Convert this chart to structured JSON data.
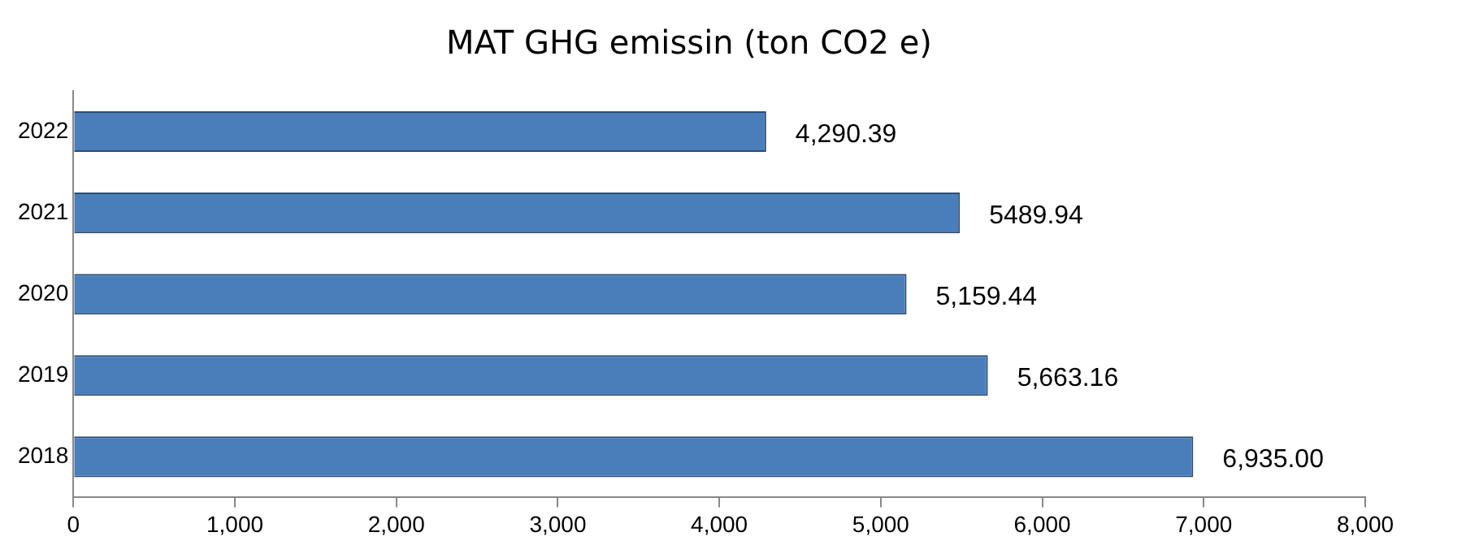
{
  "chart_data": {
    "type": "bar",
    "orientation": "horizontal",
    "title": "MAT GHG emissin (ton CO2 e)",
    "categories": [
      "2022",
      "2021",
      "2020",
      "2019",
      "2018"
    ],
    "values": [
      4290.39,
      5489.94,
      5159.44,
      5663.16,
      6935.0
    ],
    "value_labels": [
      "4,290.39",
      "5489.94",
      "5,159.44",
      "5,663.16",
      "6,935.00"
    ],
    "color": "#4a7ebb",
    "xlim": [
      0,
      8000
    ],
    "xticks": [
      0,
      {
        "value": 1000,
        "label": "1,000"
      },
      {
        "value": 2000,
        "label": "2,000"
      },
      {
        "value": 3000,
        "label": "3,000"
      },
      {
        "value": 4000,
        "label": "4,000"
      },
      {
        "value": 5000,
        "label": "5,000"
      },
      {
        "value": 6000,
        "label": "6,000"
      },
      {
        "value": 7000,
        "label": "7,000"
      },
      {
        "value": 8000,
        "label": "8,000"
      }
    ],
    "grid": false,
    "legend": false
  }
}
